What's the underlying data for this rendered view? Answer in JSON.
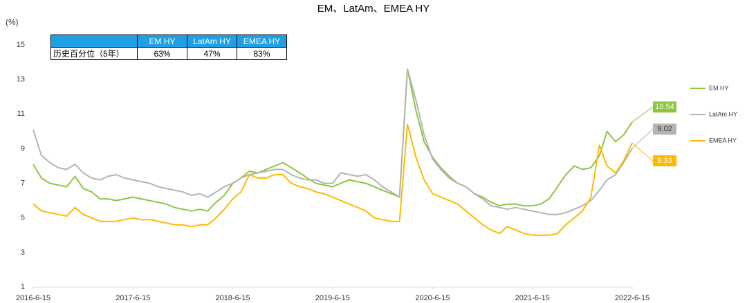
{
  "chart_data": {
    "type": "line",
    "title": "EM、LatAm、EMEA HY",
    "y_label": "(%)",
    "x": [
      "2016-6-15",
      "2016-7-15",
      "2016-8-15",
      "2016-9-15",
      "2016-10-15",
      "2016-11-15",
      "2016-12-15",
      "2017-1-15",
      "2017-2-15",
      "2017-3-15",
      "2017-4-15",
      "2017-5-15",
      "2017-6-15",
      "2017-7-15",
      "2017-8-15",
      "2017-9-15",
      "2017-10-15",
      "2017-11-15",
      "2017-12-15",
      "2018-1-15",
      "2018-2-15",
      "2018-3-15",
      "2018-4-15",
      "2018-5-15",
      "2018-6-15",
      "2018-7-15",
      "2018-8-15",
      "2018-9-15",
      "2018-10-15",
      "2018-11-15",
      "2018-12-15",
      "2019-1-15",
      "2019-2-15",
      "2019-3-15",
      "2019-4-15",
      "2019-5-15",
      "2019-6-15",
      "2019-7-15",
      "2019-8-15",
      "2019-9-15",
      "2019-10-15",
      "2019-11-15",
      "2019-12-15",
      "2020-1-15",
      "2020-2-15",
      "2020-3-15",
      "2020-4-15",
      "2020-5-15",
      "2020-6-15",
      "2020-7-15",
      "2020-8-15",
      "2020-9-15",
      "2020-10-15",
      "2020-11-15",
      "2020-12-15",
      "2021-1-15",
      "2021-2-15",
      "2021-3-15",
      "2021-4-15",
      "2021-5-15",
      "2021-6-15",
      "2021-7-15",
      "2021-8-15",
      "2021-9-15",
      "2021-10-15",
      "2021-11-15",
      "2021-12-15",
      "2022-1-15",
      "2022-2-15",
      "2022-3-15",
      "2022-4-15",
      "2022-5-15",
      "2022-6-15"
    ],
    "series": [
      {
        "name": "EM HY",
        "color": "#8dc63f",
        "values": [
          8.1,
          7.3,
          7.0,
          6.9,
          6.8,
          7.4,
          6.7,
          6.5,
          6.1,
          6.1,
          6.0,
          6.1,
          6.2,
          6.1,
          6.0,
          5.9,
          5.8,
          5.6,
          5.5,
          5.4,
          5.5,
          5.4,
          5.9,
          6.3,
          7.0,
          7.3,
          7.7,
          7.6,
          7.8,
          8.0,
          8.2,
          7.9,
          7.6,
          7.3,
          7.0,
          6.9,
          6.8,
          7.0,
          7.2,
          7.1,
          7.0,
          6.8,
          6.6,
          6.4,
          6.2,
          13.6,
          11.2,
          9.4,
          8.5,
          7.9,
          7.4,
          7.0,
          6.8,
          6.4,
          6.2,
          5.9,
          5.7,
          5.8,
          5.8,
          5.7,
          5.7,
          5.8,
          6.1,
          6.8,
          7.5,
          8.0,
          7.8,
          7.9,
          8.6,
          10.0,
          9.4,
          9.8,
          10.54
        ]
      },
      {
        "name": "LatAm HY",
        "color": "#b4b4b4",
        "values": [
          10.1,
          8.6,
          8.2,
          7.9,
          7.8,
          8.1,
          7.6,
          7.3,
          7.2,
          7.4,
          7.5,
          7.3,
          7.2,
          7.1,
          7.0,
          6.8,
          6.7,
          6.6,
          6.5,
          6.3,
          6.4,
          6.2,
          6.5,
          6.8,
          7.0,
          7.3,
          7.5,
          7.6,
          7.7,
          7.8,
          7.8,
          7.5,
          7.3,
          7.2,
          7.2,
          7.0,
          7.0,
          7.6,
          7.5,
          7.4,
          7.5,
          7.2,
          6.8,
          6.5,
          6.2,
          13.6,
          11.8,
          9.8,
          8.4,
          7.8,
          7.3,
          7.0,
          6.8,
          6.4,
          6.1,
          5.7,
          5.6,
          5.5,
          5.6,
          5.5,
          5.4,
          5.3,
          5.2,
          5.2,
          5.3,
          5.5,
          5.7,
          6.0,
          6.6,
          7.2,
          7.5,
          8.2,
          9.02
        ]
      },
      {
        "name": "EMEA HY",
        "color": "#ffb900",
        "values": [
          5.8,
          5.4,
          5.3,
          5.2,
          5.1,
          5.6,
          5.2,
          5.0,
          4.8,
          4.8,
          4.8,
          4.9,
          5.0,
          4.9,
          4.9,
          4.8,
          4.7,
          4.6,
          4.6,
          4.5,
          4.6,
          4.6,
          5.0,
          5.5,
          6.1,
          6.5,
          7.5,
          7.3,
          7.3,
          7.5,
          7.5,
          7.0,
          6.8,
          6.7,
          6.5,
          6.4,
          6.2,
          6.0,
          5.8,
          5.6,
          5.4,
          5.0,
          4.9,
          4.8,
          4.8,
          10.4,
          8.5,
          7.2,
          6.4,
          6.2,
          6.0,
          5.8,
          5.4,
          5.0,
          4.6,
          4.3,
          4.1,
          4.5,
          4.3,
          4.1,
          4.0,
          4.0,
          4.0,
          4.1,
          4.6,
          5.0,
          5.4,
          6.2,
          9.2,
          8.0,
          7.6,
          8.3,
          9.33
        ]
      }
    ],
    "xlim": [
      "2016-6-15",
      "2022-6-15"
    ],
    "xticks": [
      "2016-6-15",
      "2017-6-15",
      "2018-6-15",
      "2019-6-15",
      "2020-6-15",
      "2021-6-15",
      "2022-6-15"
    ],
    "ylim": [
      1,
      15
    ],
    "yticks": [
      1,
      3,
      5,
      7,
      9,
      11,
      13,
      15
    ],
    "grid": false,
    "legend": "right"
  },
  "table": {
    "header": [
      "EM HY",
      "LatAm HY",
      "EMEA HY"
    ],
    "rows": [
      [
        "历史百分位（5年）",
        "63%",
        "47%",
        "83%"
      ]
    ]
  }
}
